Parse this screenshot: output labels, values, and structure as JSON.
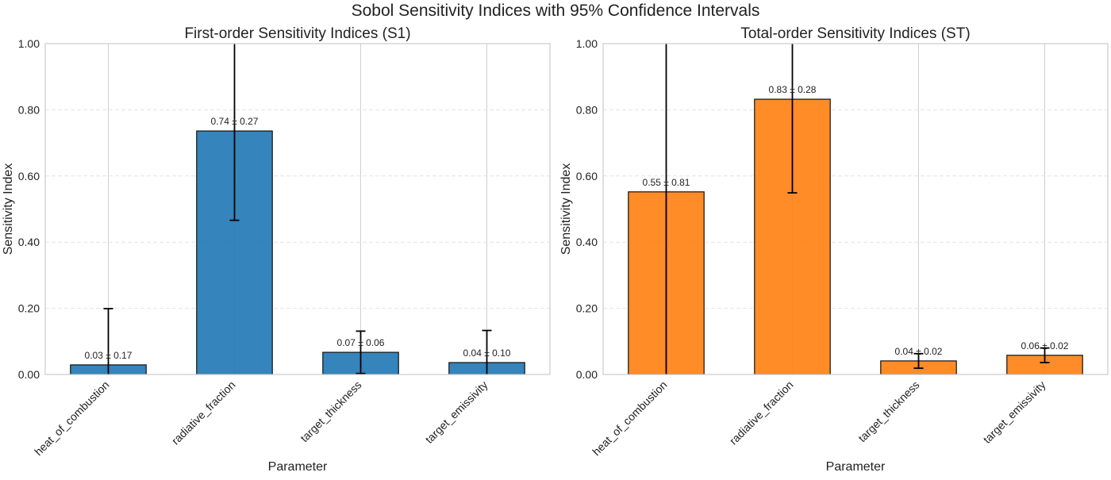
{
  "suptitle": "Sobol Sensitivity Indices with 95% Confidence Intervals",
  "chart_data": [
    {
      "type": "bar",
      "title": "First-order Sensitivity Indices (S1)",
      "xlabel": "Parameter",
      "ylabel": "Sensitivity Index",
      "ylim": [
        0,
        1.0
      ],
      "yticks": [
        "0.00",
        "0.20",
        "0.40",
        "0.60",
        "0.80",
        "1.00"
      ],
      "grid": true,
      "color": "#1f77b4",
      "categories": [
        "heat_of_combustion",
        "radiative_fraction",
        "target_thickness",
        "target_emissivity"
      ],
      "values": [
        0.029,
        0.736,
        0.067,
        0.036
      ],
      "errors": [
        0.17,
        0.27,
        0.064,
        0.097
      ],
      "labels": [
        "0.03 ± 0.17",
        "0.74 ± 0.27",
        "0.07 ± 0.06",
        "0.04 ± 0.10"
      ]
    },
    {
      "type": "bar",
      "title": "Total-order Sensitivity Indices (ST)",
      "xlabel": "Parameter",
      "ylabel": "Sensitivity Index",
      "ylim": [
        0,
        1.0
      ],
      "yticks": [
        "0.00",
        "0.20",
        "0.40",
        "0.60",
        "0.80",
        "1.00"
      ],
      "grid": true,
      "color": "#ff7f0e",
      "categories": [
        "heat_of_combustion",
        "radiative_fraction",
        "target_thickness",
        "target_emissivity"
      ],
      "values": [
        0.552,
        0.832,
        0.041,
        0.058
      ],
      "errors": [
        0.81,
        0.283,
        0.022,
        0.022
      ],
      "labels": [
        "0.55 ± 0.81",
        "0.83 ± 0.28",
        "0.04 ± 0.02",
        "0.06 ± 0.02"
      ]
    }
  ]
}
